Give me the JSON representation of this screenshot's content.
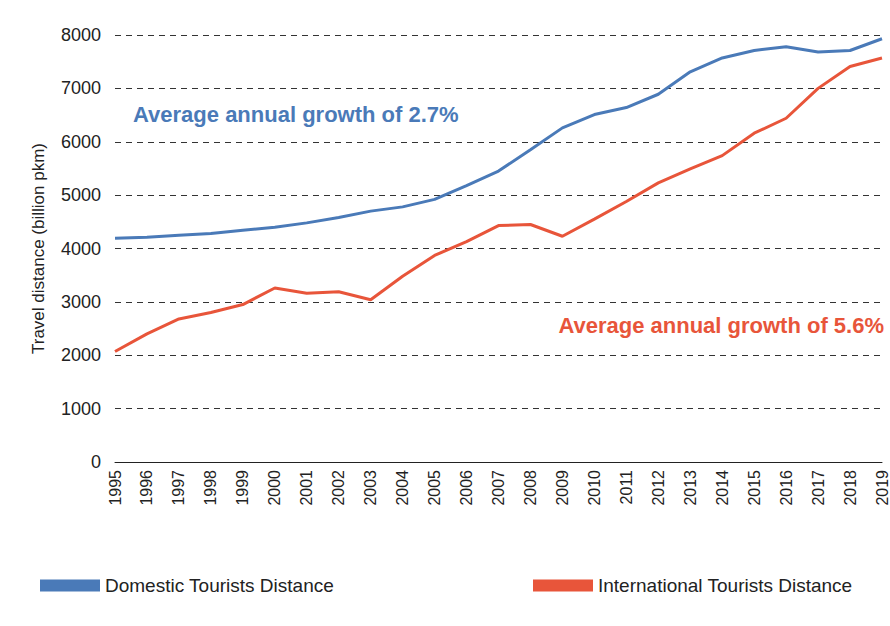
{
  "chart_data": {
    "type": "line",
    "y_label": "Travel distance (billion pkm)",
    "categories": [
      "1995",
      "1996",
      "1997",
      "1998",
      "1999",
      "2000",
      "2001",
      "2002",
      "2003",
      "2004",
      "2005",
      "2006",
      "2007",
      "2008",
      "2009",
      "2010",
      "2011",
      "2012",
      "2013",
      "2014",
      "2015",
      "2016",
      "2017",
      "2018",
      "2019"
    ],
    "series": [
      {
        "name": "Domestic Tourists Distance",
        "color": "#4a7ab8",
        "values": [
          4190,
          4210,
          4250,
          4280,
          4340,
          4400,
          4480,
          4580,
          4700,
          4780,
          4920,
          5180,
          5450,
          5850,
          6260,
          6510,
          6640,
          6890,
          7310,
          7570,
          7710,
          7780,
          7680,
          7710,
          7930
        ]
      },
      {
        "name": "International Tourists Distance",
        "color": "#e8553a",
        "values": [
          2070,
          2400,
          2680,
          2800,
          2950,
          3260,
          3160,
          3190,
          3040,
          3480,
          3870,
          4130,
          4430,
          4450,
          4230,
          4550,
          4880,
          5230,
          5490,
          5740,
          6160,
          6440,
          7000,
          7410,
          7570
        ]
      }
    ],
    "annotations": [
      {
        "text": "Average annual growth of 2.7%",
        "color": "#4a7ab8"
      },
      {
        "text": "Average annual growth of 5.6%",
        "color": "#e8553a"
      }
    ],
    "ylim": [
      0,
      8000
    ],
    "yticks": [
      0,
      1000,
      2000,
      3000,
      4000,
      5000,
      6000,
      7000,
      8000
    ],
    "grid": true,
    "legend": "bottom"
  }
}
